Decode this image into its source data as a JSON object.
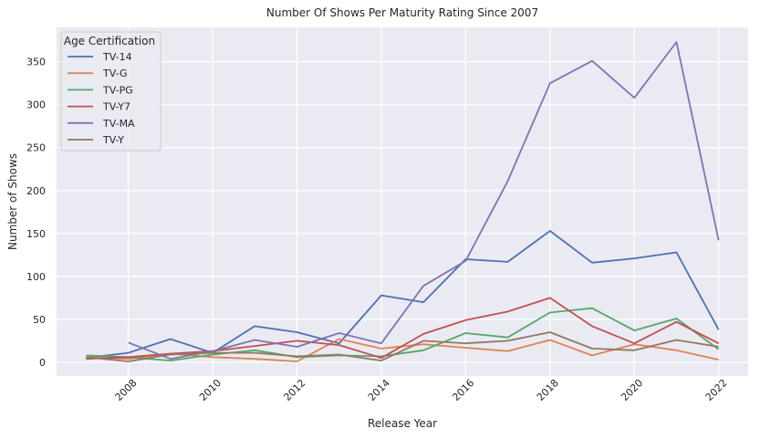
{
  "chart_data": {
    "type": "line",
    "title": "Number Of Shows Per Maturity Rating Since 2007",
    "xlabel": "Release Year",
    "ylabel": "Number of Shows",
    "xlim": [
      2006.3,
      2022.7
    ],
    "ylim": [
      -16,
      390
    ],
    "x_ticks": [
      2008,
      2010,
      2012,
      2014,
      2016,
      2018,
      2020,
      2022
    ],
    "y_ticks": [
      0,
      50,
      100,
      150,
      200,
      250,
      300,
      350
    ],
    "grid": true,
    "legend": {
      "title": "Age Certification",
      "placement": "top-left"
    },
    "series": [
      {
        "name": "TV-14",
        "color": "#4c72b0",
        "x": [
          2007,
          2008,
          2009,
          2010,
          2011,
          2012,
          2013,
          2014,
          2015,
          2016,
          2017,
          2018,
          2019,
          2020,
          2021,
          2022
        ],
        "y": [
          5,
          11,
          27,
          11,
          42,
          35,
          22,
          78,
          70,
          120,
          117,
          153,
          116,
          121,
          128,
          38
        ]
      },
      {
        "name": "TV-G",
        "color": "#dd8452",
        "x": [
          2007,
          2008,
          2009,
          2010,
          2011,
          2012,
          2013,
          2014,
          2015,
          2016,
          2017,
          2018,
          2019,
          2020,
          2021,
          2022
        ],
        "y": [
          6,
          4,
          10,
          6,
          4,
          1,
          27,
          16,
          21,
          17,
          13,
          26,
          8,
          21,
          14,
          3
        ]
      },
      {
        "name": "TV-PG",
        "color": "#55a868",
        "x": [
          2007,
          2008,
          2009,
          2010,
          2011,
          2012,
          2013,
          2014,
          2015,
          2016,
          2017,
          2018,
          2019,
          2020,
          2021,
          2022
        ],
        "y": [
          8,
          6,
          2,
          9,
          14,
          6,
          8,
          7,
          14,
          34,
          29,
          58,
          63,
          37,
          51,
          15
        ]
      },
      {
        "name": "TV-Y7",
        "color": "#c44e52",
        "x": [
          2007,
          2008,
          2009,
          2010,
          2011,
          2012,
          2013,
          2014,
          2015,
          2016,
          2017,
          2018,
          2019,
          2020,
          2021,
          2022
        ],
        "y": [
          4,
          6,
          10,
          13,
          19,
          25,
          20,
          5,
          33,
          49,
          59,
          75,
          42,
          22,
          47,
          22
        ]
      },
      {
        "name": "TV-MA",
        "color": "#8172b3",
        "x": [
          2008,
          2009,
          2010,
          2011,
          2012,
          2013,
          2014,
          2015,
          2016,
          2017,
          2018,
          2019,
          2020,
          2021,
          2022
        ],
        "y": [
          23,
          4,
          13,
          26,
          18,
          34,
          22,
          89,
          118,
          211,
          325,
          351,
          308,
          373,
          142
        ]
      },
      {
        "name": "TV-Y",
        "color": "#937860",
        "x": [
          2007,
          2008,
          2009,
          2010,
          2011,
          2012,
          2013,
          2014,
          2015,
          2016,
          2017,
          2018,
          2019,
          2020,
          2021,
          2022
        ],
        "y": [
          6,
          1,
          9,
          11,
          11,
          7,
          9,
          2,
          25,
          22,
          25,
          35,
          16,
          14,
          26,
          18
        ]
      }
    ]
  }
}
